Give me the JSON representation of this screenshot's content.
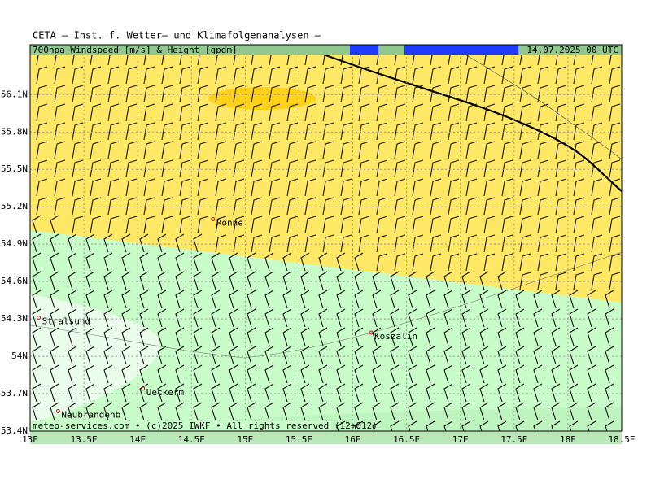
{
  "header": {
    "title": "CETA — Inst. f. Wetter— und Klimafolgenanalysen —"
  },
  "map": {
    "subtitle": "700hpa Windspeed [m/s] & Height [gpdm]",
    "timestamp": "14.07.2025 00 UTC",
    "footer": "meteo-services.com • (c)2025 IWKF • All rights reserved (12+012)",
    "xlim": [
      13,
      18.5
    ],
    "ylim": [
      53.4,
      56.5
    ],
    "xticks": [
      {
        "value": 13,
        "label": "13E"
      },
      {
        "value": 13.5,
        "label": "13.5E"
      },
      {
        "value": 14,
        "label": "14E"
      },
      {
        "value": 14.5,
        "label": "14.5E"
      },
      {
        "value": 15,
        "label": "15E"
      },
      {
        "value": 15.5,
        "label": "15.5E"
      },
      {
        "value": 16,
        "label": "16E"
      },
      {
        "value": 16.5,
        "label": "16.5E"
      },
      {
        "value": 17,
        "label": "17E"
      },
      {
        "value": 17.5,
        "label": "17.5E"
      },
      {
        "value": 18,
        "label": "18E"
      },
      {
        "value": 18.5,
        "label": "18.5E"
      }
    ],
    "yticks": [
      {
        "value": 53.4,
        "label": "53.4N"
      },
      {
        "value": 53.7,
        "label": "53.7N"
      },
      {
        "value": 54,
        "label": "54N"
      },
      {
        "value": 54.3,
        "label": "54.3N"
      },
      {
        "value": 54.6,
        "label": "54.6N"
      },
      {
        "value": 54.9,
        "label": "54.9N"
      },
      {
        "value": 55.2,
        "label": "55.2N"
      },
      {
        "value": 55.5,
        "label": "55.5N"
      },
      {
        "value": 55.8,
        "label": "55.8N"
      },
      {
        "value": 56.1,
        "label": "56.1N"
      }
    ],
    "cities": [
      {
        "name": "Ronne",
        "lon": 14.7,
        "lat": 55.1
      },
      {
        "name": "Stralsund",
        "lon": 13.08,
        "lat": 54.31
      },
      {
        "name": "Koszalin",
        "lon": 16.17,
        "lat": 54.19
      },
      {
        "name": "Ueckerm",
        "lon": 14.05,
        "lat": 53.74
      },
      {
        "name": "Neubrandenb",
        "lon": 13.26,
        "lat": 53.56
      }
    ]
  }
}
